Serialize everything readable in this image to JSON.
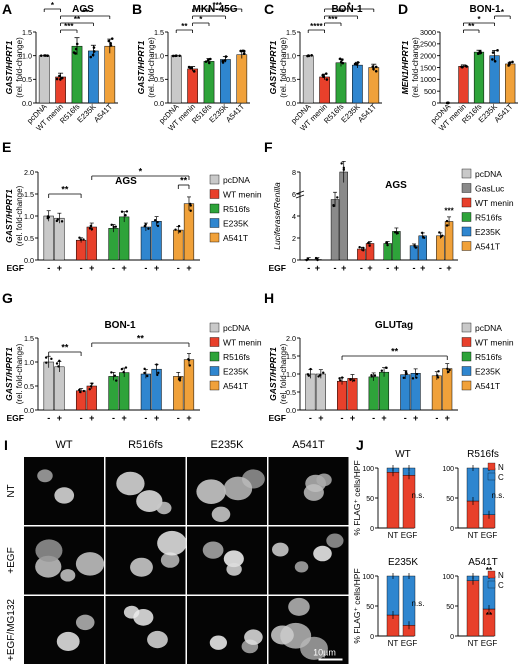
{
  "colors": {
    "pcDNA": "#c9c9c9",
    "WT menin": "#e8402b",
    "R516fs": "#2ea33a",
    "E235K": "#2f86cf",
    "A541T": "#f0a13a",
    "GasLuc": "#8a8a8a",
    "N": "#e8402b",
    "C": "#2f86cf"
  },
  "panels": {
    "A": {
      "letter": "A",
      "title": "AGS",
      "ylabel_gene": "GAST/HPRT1",
      "ylabel_unit": "(rel. fold-change)",
      "categories": [
        "pcDNA",
        "WT menin",
        "R516fs",
        "E235K",
        "A541T"
      ],
      "values": [
        1.0,
        0.55,
        1.2,
        1.1,
        1.2
      ],
      "errors": [
        0.0,
        0.08,
        0.18,
        0.12,
        0.15
      ],
      "ylim": [
        0,
        1.5
      ],
      "yticks": [
        "0.0",
        "0.5",
        "1.0",
        "1.5"
      ],
      "sig": [
        {
          "from": 1,
          "to": 2,
          "label": "***"
        },
        {
          "from": 1,
          "to": 3,
          "label": "**"
        },
        {
          "from": 1,
          "to": 4,
          "label": "**"
        },
        {
          "from": 0,
          "to": 1,
          "label": "*"
        }
      ]
    },
    "B": {
      "letter": "B",
      "title": "MKN-45G",
      "ylabel_gene": "GAST/HPRT1",
      "ylabel_unit": "(rel. fold-change)",
      "categories": [
        "pcDNA",
        "WT menin",
        "R516fs",
        "E235K",
        "A541T"
      ],
      "values": [
        1.0,
        0.72,
        0.88,
        0.92,
        1.02
      ],
      "errors": [
        0.0,
        0.05,
        0.06,
        0.06,
        0.08
      ],
      "ylim": [
        0,
        1.5
      ],
      "yticks": [
        "0.0",
        "0.5",
        "1.0",
        "1.5"
      ],
      "sig": [
        {
          "from": 0,
          "to": 1,
          "label": "**"
        },
        {
          "from": 1,
          "to": 2,
          "label": "*"
        },
        {
          "from": 1,
          "to": 3,
          "label": "*"
        },
        {
          "from": 1,
          "to": 4,
          "label": "***"
        }
      ]
    },
    "C": {
      "letter": "C",
      "title": "BON-1",
      "ylabel_gene": "GAST/HPRT1",
      "ylabel_unit": "(rel. fold-change)",
      "categories": [
        "pcDNA",
        "WT menin",
        "R516fs",
        "E235K",
        "A541T"
      ],
      "values": [
        1.0,
        0.55,
        0.85,
        0.8,
        0.75
      ],
      "errors": [
        0.0,
        0.06,
        0.08,
        0.06,
        0.07
      ],
      "ylim": [
        0,
        1.5
      ],
      "yticks": [
        "0.0",
        "0.5",
        "1.0",
        "1.5"
      ],
      "sig": [
        {
          "from": 0,
          "to": 1,
          "label": "****"
        },
        {
          "from": 1,
          "to": 2,
          "label": "***"
        },
        {
          "from": 1,
          "to": 3,
          "label": "**"
        },
        {
          "from": 1,
          "to": 4,
          "label": "*"
        }
      ]
    },
    "D": {
      "letter": "D",
      "title": "BON-1",
      "ylabel_gene": "MEN1/HPRT1",
      "ylabel_unit": "(rel. fold-change)",
      "categories": [
        "pcDNA",
        "WT menin",
        "R516fs",
        "E235K",
        "A541T"
      ],
      "values": [
        1,
        1550,
        2150,
        2000,
        1650
      ],
      "errors": [
        0,
        60,
        80,
        220,
        70
      ],
      "ylim": [
        0,
        3000
      ],
      "yticks": [
        "0",
        "500",
        "1000",
        "1500",
        "2000",
        "2500",
        "3000"
      ],
      "sig": [
        {
          "from": 1,
          "to": 2,
          "label": "**"
        },
        {
          "from": 1,
          "to": 3,
          "label": "*"
        },
        {
          "from": 3,
          "to": 4,
          "label": "*"
        }
      ]
    },
    "E": {
      "letter": "E",
      "title": "AGS",
      "ylabel_gene": "GAST/HPRT1",
      "ylabel_unit": "(rel. fold-change)",
      "egf_label": "EGF",
      "legend": [
        "pcDNA",
        "WT menin",
        "R516fs",
        "E235K",
        "A541T"
      ],
      "groups": [
        "pcDNA",
        "WT menin",
        "R516fs",
        "E235K",
        "A541T"
      ],
      "minus": [
        1.0,
        0.45,
        0.72,
        0.75,
        0.68
      ],
      "plus": [
        0.95,
        0.75,
        0.98,
        0.88,
        1.28
      ],
      "ylim": [
        0,
        2.0
      ],
      "yticks": [
        "0.0",
        "0.5",
        "1.0",
        "1.5",
        "2.0"
      ],
      "sig": [
        {
          "a": [
            0,
            0
          ],
          "b": [
            1,
            0
          ],
          "label": "**"
        },
        {
          "a": [
            4,
            0
          ],
          "b": [
            4,
            1
          ],
          "label": "**"
        },
        {
          "a": [
            1,
            1
          ],
          "b": [
            4,
            1
          ],
          "label": "*"
        }
      ]
    },
    "F": {
      "letter": "F",
      "title": "AGS",
      "ylabel": "Luciferase/Renilla",
      "egf_label": "EGF",
      "legend": [
        "pcDNA",
        "GasLuc",
        "WT menin",
        "R516fs",
        "E235K",
        "A541T"
      ],
      "groups": [
        "pcDNA",
        "GasLuc",
        "WT menin",
        "R516fs",
        "E235K",
        "A541T"
      ],
      "minus": [
        0.05,
        5.5,
        1.0,
        1.5,
        1.3,
        2.2
      ],
      "plus": [
        0.05,
        8.0,
        1.5,
        2.6,
        2.2,
        3.5
      ],
      "ylim": [
        0,
        8
      ],
      "yticks": [
        "0",
        "2",
        "4",
        "6",
        "8"
      ],
      "ybreak": true,
      "sig": [
        {
          "a": [
            5,
            1
          ],
          "b": [
            5,
            1
          ],
          "label": "***"
        }
      ]
    },
    "G": {
      "letter": "G",
      "title": "BON-1",
      "ylabel_gene": "GAST/HPRT1",
      "ylabel_unit": "(rel. fold-change)",
      "egf_label": "EGF",
      "legend": [
        "pcDNA",
        "WT menin",
        "R516fs",
        "E235K",
        "A541T"
      ],
      "groups": [
        "pcDNA",
        "WT menin",
        "R516fs",
        "E235K",
        "A541T"
      ],
      "minus": [
        1.0,
        0.4,
        0.7,
        0.75,
        0.7
      ],
      "plus": [
        0.9,
        0.5,
        0.78,
        0.85,
        1.05
      ],
      "ylim": [
        0,
        1.5
      ],
      "yticks": [
        "0.0",
        "0.5",
        "1.0",
        "1.5"
      ],
      "sig": [
        {
          "a": [
            0,
            0
          ],
          "b": [
            1,
            0
          ],
          "label": "**"
        },
        {
          "a": [
            1,
            1
          ],
          "b": [
            4,
            1
          ],
          "label": "**"
        }
      ]
    },
    "H": {
      "letter": "H",
      "title": "GLUTag",
      "ylabel_gene": "GAST/HPRT1",
      "ylabel_unit": "(rel. fold-change)",
      "egf_label": "EGF",
      "legend": [
        "pcDNA",
        "WT menin",
        "R516fs",
        "E235K",
        "A541T"
      ],
      "groups": [
        "pcDNA",
        "WT menin",
        "R516fs",
        "E235K",
        "A541T"
      ],
      "minus": [
        1.0,
        0.8,
        0.92,
        0.98,
        0.95
      ],
      "plus": [
        1.0,
        0.88,
        1.05,
        1.02,
        1.15
      ],
      "ylim": [
        0,
        2.0
      ],
      "yticks": [
        "0.0",
        "0.5",
        "1.0",
        "1.5",
        "2.0"
      ],
      "sig": [
        {
          "a": [
            1,
            0
          ],
          "b": [
            4,
            1
          ],
          "label": "**"
        }
      ]
    },
    "I": {
      "letter": "I",
      "columns": [
        "WT",
        "R516fs",
        "E235K",
        "A541T"
      ],
      "rows": [
        "NT",
        "+EGF",
        "+EGF/MG132"
      ],
      "scalebar": "10µm"
    },
    "J": {
      "letter": "J",
      "ylabel": "% FLAG⁺ cells/HPF",
      "legend": [
        "N",
        "C"
      ],
      "subpanels": [
        {
          "title": "WT",
          "categories": [
            "NT",
            "EGF"
          ],
          "N": [
            93,
            88
          ],
          "C": [
            7,
            12
          ],
          "ann": "n.s.",
          "stars": []
        },
        {
          "title": "R516fs",
          "categories": [
            "NT",
            "EGF"
          ],
          "N": [
            45,
            22
          ],
          "C": [
            55,
            78
          ],
          "ann": "n.s.",
          "stars": []
        },
        {
          "title": "E235K",
          "categories": [
            "NT",
            "EGF"
          ],
          "N": [
            35,
            18
          ],
          "C": [
            65,
            82
          ],
          "ann": "n.s.",
          "stars": []
        },
        {
          "title": "A541T",
          "categories": [
            "NT",
            "EGF"
          ],
          "N": [
            92,
            45
          ],
          "C": [
            8,
            55
          ],
          "ann": "",
          "stars": [
            "**",
            "**"
          ]
        }
      ],
      "ylim": [
        0,
        100
      ],
      "yticks": [
        "0",
        "50",
        "100"
      ]
    }
  },
  "chart_data": [
    {
      "type": "bar",
      "title": "AGS",
      "categories": [
        "pcDNA",
        "WT menin",
        "R516fs",
        "E235K",
        "A541T"
      ],
      "values": [
        1.0,
        0.55,
        1.2,
        1.1,
        1.2
      ],
      "ylabel": "GAST/HPRT1 (rel. fold-change)",
      "ylim": [
        0,
        1.5
      ]
    },
    {
      "type": "bar",
      "title": "MKN-45G",
      "categories": [
        "pcDNA",
        "WT menin",
        "R516fs",
        "E235K",
        "A541T"
      ],
      "values": [
        1.0,
        0.72,
        0.88,
        0.92,
        1.02
      ],
      "ylabel": "GAST/HPRT1 (rel. fold-change)",
      "ylim": [
        0,
        1.5
      ]
    },
    {
      "type": "bar",
      "title": "BON-1",
      "categories": [
        "pcDNA",
        "WT menin",
        "R516fs",
        "E235K",
        "A541T"
      ],
      "values": [
        1.0,
        0.55,
        0.85,
        0.8,
        0.75
      ],
      "ylabel": "GAST/HPRT1 (rel. fold-change)",
      "ylim": [
        0,
        1.5
      ]
    },
    {
      "type": "bar",
      "title": "BON-1",
      "categories": [
        "pcDNA",
        "WT menin",
        "R516fs",
        "E235K",
        "A541T"
      ],
      "values": [
        1,
        1550,
        2150,
        2000,
        1650
      ],
      "ylabel": "MEN1/HPRT1 (rel. fold-change)",
      "ylim": [
        0,
        3000
      ]
    },
    {
      "type": "bar",
      "title": "AGS",
      "categories": [
        "pcDNA",
        "WT menin",
        "R516fs",
        "E235K",
        "A541T"
      ],
      "series": [
        {
          "name": "-",
          "values": [
            1.0,
            0.45,
            0.72,
            0.75,
            0.68
          ]
        },
        {
          "name": "+",
          "values": [
            0.95,
            0.75,
            0.98,
            0.88,
            1.28
          ]
        }
      ],
      "ylabel": "GAST/HPRT1 (rel. fold-change)",
      "ylim": [
        0,
        2.0
      ]
    },
    {
      "type": "bar",
      "title": "AGS",
      "categories": [
        "pcDNA",
        "GasLuc",
        "WT menin",
        "R516fs",
        "E235K",
        "A541T"
      ],
      "series": [
        {
          "name": "-",
          "values": [
            0.05,
            5.5,
            1.0,
            1.5,
            1.3,
            2.2
          ]
        },
        {
          "name": "+",
          "values": [
            0.05,
            8.0,
            1.5,
            2.6,
            2.2,
            3.5
          ]
        }
      ],
      "ylabel": "Luciferase/Renilla",
      "ylim": [
        0,
        8
      ]
    },
    {
      "type": "bar",
      "title": "BON-1",
      "categories": [
        "pcDNA",
        "WT menin",
        "R516fs",
        "E235K",
        "A541T"
      ],
      "series": [
        {
          "name": "-",
          "values": [
            1.0,
            0.4,
            0.7,
            0.75,
            0.7
          ]
        },
        {
          "name": "+",
          "values": [
            0.9,
            0.5,
            0.78,
            0.85,
            1.05
          ]
        }
      ],
      "ylabel": "GAST/HPRT1 (rel. fold-change)",
      "ylim": [
        0,
        1.5
      ]
    },
    {
      "type": "bar",
      "title": "GLUTag",
      "categories": [
        "pcDNA",
        "WT menin",
        "R516fs",
        "E235K",
        "A541T"
      ],
      "series": [
        {
          "name": "-",
          "values": [
            1.0,
            0.8,
            0.92,
            0.98,
            0.95
          ]
        },
        {
          "name": "+",
          "values": [
            1.0,
            0.88,
            1.05,
            1.02,
            1.15
          ]
        }
      ],
      "ylabel": "GAST/HPRT1 (rel. fold-change)",
      "ylim": [
        0,
        2.0
      ]
    },
    {
      "type": "bar",
      "title": "WT",
      "categories": [
        "NT",
        "EGF"
      ],
      "series": [
        {
          "name": "N",
          "values": [
            93,
            88
          ]
        },
        {
          "name": "C",
          "values": [
            7,
            12
          ]
        }
      ],
      "ylabel": "% FLAG⁺ cells/HPF",
      "ylim": [
        0,
        100
      ]
    },
    {
      "type": "bar",
      "title": "R516fs",
      "categories": [
        "NT",
        "EGF"
      ],
      "series": [
        {
          "name": "N",
          "values": [
            45,
            22
          ]
        },
        {
          "name": "C",
          "values": [
            55,
            78
          ]
        }
      ],
      "ylim": [
        0,
        100
      ]
    },
    {
      "type": "bar",
      "title": "E235K",
      "categories": [
        "NT",
        "EGF"
      ],
      "series": [
        {
          "name": "N",
          "values": [
            35,
            18
          ]
        },
        {
          "name": "C",
          "values": [
            65,
            82
          ]
        }
      ],
      "ylabel": "% FLAG⁺ cells/HPF",
      "ylim": [
        0,
        100
      ]
    },
    {
      "type": "bar",
      "title": "A541T",
      "categories": [
        "NT",
        "EGF"
      ],
      "series": [
        {
          "name": "N",
          "values": [
            92,
            45
          ]
        },
        {
          "name": "C",
          "values": [
            8,
            55
          ]
        }
      ],
      "ylim": [
        0,
        100
      ]
    }
  ]
}
